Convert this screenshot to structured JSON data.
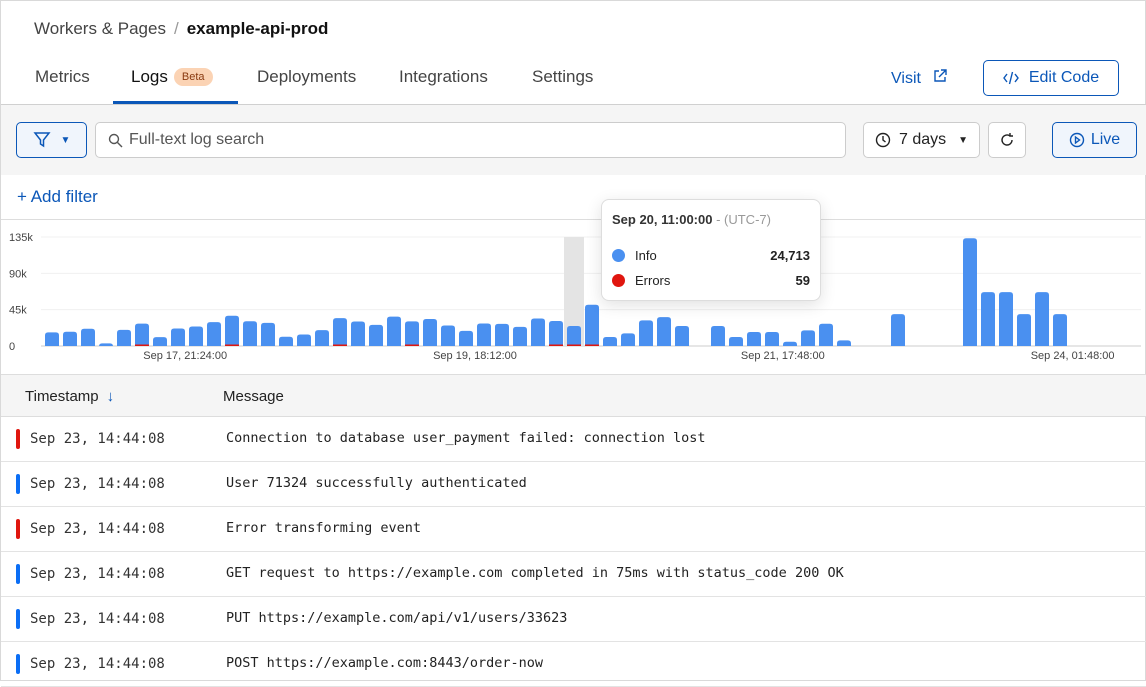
{
  "breadcrumb": {
    "parent": "Workers & Pages",
    "current": "example-api-prod"
  },
  "tabs": [
    {
      "label": "Metrics"
    },
    {
      "label": "Logs",
      "badge": "Beta",
      "active": true
    },
    {
      "label": "Deployments"
    },
    {
      "label": "Integrations"
    },
    {
      "label": "Settings"
    }
  ],
  "header_actions": {
    "visit": "Visit",
    "edit_code": "Edit Code"
  },
  "toolbar": {
    "search_placeholder": "Full-text log search",
    "time_range": "7 days",
    "live": "Live",
    "add_filter": "Add filter"
  },
  "colors": {
    "accent": "#0b57b8",
    "info": "#4a90f0",
    "error": "#e0160f"
  },
  "chart_data": {
    "type": "bar",
    "stacked": true,
    "ylim": [
      0,
      135000
    ],
    "yticks": [
      "0",
      "45k",
      "90k",
      "135k"
    ],
    "xticks": [
      {
        "label": "Sep 17, 21:24:00",
        "index": 7.4
      },
      {
        "label": "Sep 19, 18:12:00",
        "index": 23.5
      },
      {
        "label": "Sep 21, 17:48:00",
        "index": 40.6
      },
      {
        "label": "Sep 24, 01:48:00",
        "index": 56.7
      }
    ],
    "series": [
      {
        "name": "Info",
        "color": "#4a90f0",
        "values": [
          16800,
          17600,
          21300,
          3300,
          20000,
          27400,
          11000,
          21700,
          24100,
          29500,
          37200,
          30700,
          28600,
          11500,
          14300,
          19600,
          34400,
          30300,
          26200,
          36400,
          30300,
          33500,
          25400,
          18800,
          27800,
          27400,
          23700,
          34000,
          30700,
          24713,
          49600,
          11100,
          15600,
          31700,
          35800,
          24700,
          0,
          24700,
          11100,
          17300,
          17300,
          5300,
          19300,
          27600,
          7000,
          0,
          0,
          39500,
          0,
          0,
          0,
          133400,
          66700,
          66700,
          39500,
          66700,
          39500,
          0,
          0,
          0,
          0
        ]
      },
      {
        "name": "Errors",
        "color": "#e0160f",
        "values": [
          0,
          0,
          0,
          0,
          0,
          300,
          0,
          0,
          0,
          0,
          200,
          0,
          0,
          0,
          0,
          0,
          200,
          0,
          0,
          0,
          200,
          0,
          0,
          0,
          0,
          0,
          0,
          0,
          200,
          59,
          1500,
          0,
          0,
          0,
          0,
          0,
          0,
          0,
          0,
          0,
          0,
          0,
          0,
          0,
          0,
          0,
          0,
          0,
          0,
          0,
          0,
          0,
          0,
          0,
          0,
          0,
          0,
          0,
          0,
          0,
          0
        ]
      }
    ],
    "highlight_index": 29,
    "tooltip": {
      "title": "Sep 20, 11:00:00",
      "tz": " - (UTC-7)",
      "rows": [
        {
          "label": "Info",
          "value": "24,713"
        },
        {
          "label": "Errors",
          "value": "59"
        }
      ]
    }
  },
  "table": {
    "columns": {
      "timestamp": "Timestamp",
      "message": "Message"
    },
    "rows": [
      {
        "level": "error",
        "timestamp": "Sep 23, 14:44:08",
        "message": "Connection to database user_payment failed: connection lost"
      },
      {
        "level": "info",
        "timestamp": "Sep 23, 14:44:08",
        "message": "User 71324 successfully authenticated"
      },
      {
        "level": "error",
        "timestamp": "Sep 23, 14:44:08",
        "message": "Error transforming event"
      },
      {
        "level": "info",
        "timestamp": "Sep 23, 14:44:08",
        "message": "GET request to https://example.com completed in 75ms with status_code 200 OK"
      },
      {
        "level": "info",
        "timestamp": "Sep 23, 14:44:08",
        "message": "PUT https://example.com/api/v1/users/33623"
      },
      {
        "level": "info",
        "timestamp": "Sep 23, 14:44:08",
        "message": "POST https://example.com:8443/order-now"
      }
    ]
  }
}
